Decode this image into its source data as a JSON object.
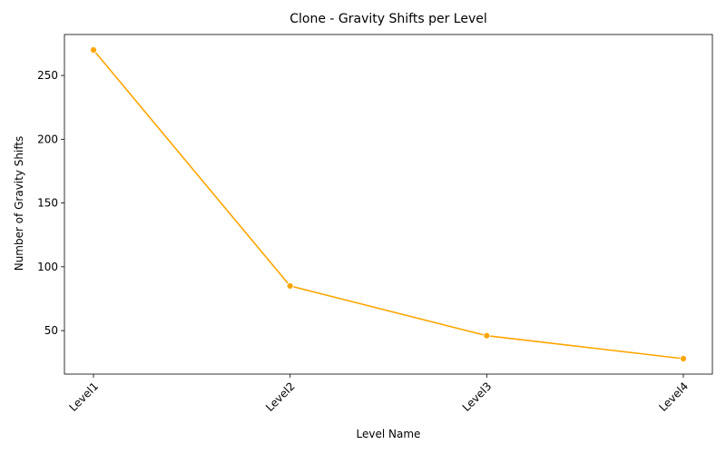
{
  "chart_data": {
    "type": "line",
    "title": "Clone - Gravity Shifts per Level",
    "xlabel": "Level Name",
    "ylabel": "Number of Gravity Shifts",
    "categories": [
      "Level1",
      "Level2",
      "Level3",
      "Level4"
    ],
    "series": [
      {
        "values": [
          270,
          85,
          46,
          28
        ],
        "color": "#FFA500"
      }
    ],
    "yticks": [
      50,
      100,
      150,
      200,
      250
    ],
    "ylim": [
      15.9,
      282.1
    ],
    "grid": false,
    "legend": "none"
  }
}
